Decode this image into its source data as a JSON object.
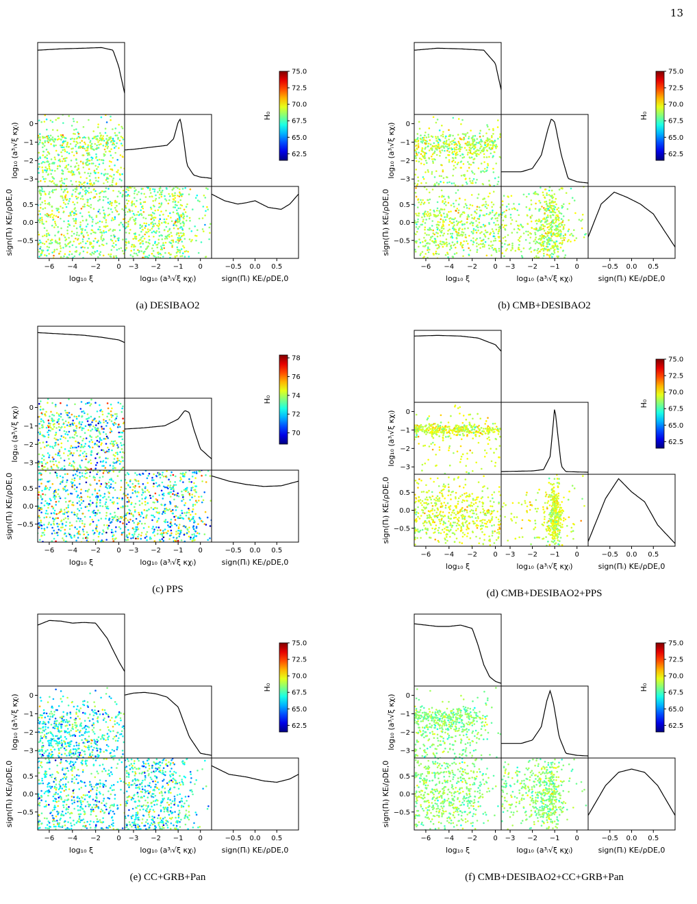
{
  "page_number": "13",
  "shared": {
    "colorbar_label": "H₀",
    "x_labels": [
      "log₁₀ ξ",
      "log₁₀ (a³ᵢ√ξ κχᵢ)",
      "sign(Πᵢ) KEᵢ/ρDE,0"
    ],
    "y_labels": [
      "log₁₀ (a³ᵢ√ξ κχᵢ)",
      "sign(Πᵢ) KEᵢ/ρDE,0"
    ]
  },
  "panels": [
    {
      "id": "a",
      "caption": "(a) DESIBAO2",
      "cbar_ticks": [
        "62.5",
        "65.0",
        "67.5",
        "70.0",
        "72.5",
        "75.0"
      ],
      "cbar_range": [
        61.5,
        75.0
      ]
    },
    {
      "id": "b",
      "caption": "(b) CMB+DESIBAO2",
      "cbar_ticks": [
        "62.5",
        "65.0",
        "67.5",
        "70.0",
        "72.5",
        "75.0"
      ],
      "cbar_range": [
        61.5,
        75.0
      ]
    },
    {
      "id": "c",
      "caption": "(c) PPS",
      "cbar_ticks": [
        "70",
        "72",
        "74",
        "76",
        "78"
      ],
      "cbar_range": [
        68.8,
        78.3
      ]
    },
    {
      "id": "d",
      "caption": "(d) CMB+DESIBAO2+PPS",
      "cbar_ticks": [
        "62.5",
        "65.0",
        "67.5",
        "70.0",
        "72.5",
        "75.0"
      ],
      "cbar_range": [
        61.5,
        75.0
      ]
    },
    {
      "id": "e",
      "caption": "(e) CC+GRB+Pan",
      "cbar_ticks": [
        "62.5",
        "65.0",
        "67.5",
        "70.0",
        "72.5",
        "75.0"
      ],
      "cbar_range": [
        61.5,
        75.0
      ]
    },
    {
      "id": "f",
      "caption": "(f) CMB+DESIBAO2+CC+GRB+Pan",
      "cbar_ticks": [
        "62.5",
        "65.0",
        "67.5",
        "70.0",
        "72.5",
        "75.0"
      ],
      "cbar_range": [
        61.5,
        75.0
      ]
    }
  ],
  "chart_data": [
    {
      "type": "scatter",
      "panel": "a",
      "axes": {
        "log10_xi": [
          -7,
          0.5
        ],
        "log10_amp": [
          -3.4,
          0.5
        ],
        "sign_KE": [
          -1,
          1
        ]
      },
      "marginals": {
        "log10_xi": [
          [
            -7,
            0.95
          ],
          [
            -5,
            0.97
          ],
          [
            -3,
            0.98
          ],
          [
            -1.5,
            0.99
          ],
          [
            -0.5,
            0.95
          ],
          [
            0,
            0.7
          ],
          [
            0.5,
            0.3
          ]
        ],
        "log10_amp": [
          [
            -3.4,
            0.53
          ],
          [
            -3,
            0.54
          ],
          [
            -2.5,
            0.56
          ],
          [
            -2,
            0.58
          ],
          [
            -1.5,
            0.6
          ],
          [
            -1.2,
            0.7
          ],
          [
            -1,
            0.95
          ],
          [
            -0.9,
            1.0
          ],
          [
            -0.8,
            0.8
          ],
          [
            -0.6,
            0.3
          ],
          [
            -0.3,
            0.15
          ],
          [
            0,
            0.12
          ],
          [
            0.3,
            0.11
          ],
          [
            0.5,
            0.1
          ]
        ],
        "sign_KE": [
          [
            -1,
            0.95
          ],
          [
            -0.7,
            0.85
          ],
          [
            -0.4,
            0.8
          ],
          [
            -0.2,
            0.82
          ],
          [
            0,
            0.85
          ],
          [
            0.3,
            0.75
          ],
          [
            0.6,
            0.72
          ],
          [
            0.8,
            0.8
          ],
          [
            1,
            0.95
          ]
        ]
      },
      "h0_mean": 68.6,
      "h0_spread": 1.1
    },
    {
      "type": "scatter",
      "panel": "b",
      "axes": {
        "log10_xi": [
          -7,
          0.5
        ],
        "log10_amp": [
          -3.4,
          0.5
        ],
        "sign_KE": [
          -1,
          1
        ]
      },
      "marginals": {
        "log10_xi": [
          [
            -7,
            0.95
          ],
          [
            -5,
            0.98
          ],
          [
            -3,
            0.97
          ],
          [
            -1,
            0.95
          ],
          [
            0,
            0.75
          ],
          [
            0.5,
            0.35
          ]
        ],
        "log10_amp": [
          [
            -3.4,
            0.2
          ],
          [
            -2.5,
            0.2
          ],
          [
            -2,
            0.25
          ],
          [
            -1.6,
            0.45
          ],
          [
            -1.3,
            0.85
          ],
          [
            -1.15,
            1.0
          ],
          [
            -1,
            0.95
          ],
          [
            -0.7,
            0.45
          ],
          [
            -0.4,
            0.1
          ],
          [
            0,
            0.05
          ],
          [
            0.5,
            0.03
          ]
        ],
        "sign_KE": [
          [
            -1,
            0.3
          ],
          [
            -0.7,
            0.8
          ],
          [
            -0.4,
            0.98
          ],
          [
            -0.1,
            0.9
          ],
          [
            0.2,
            0.8
          ],
          [
            0.5,
            0.65
          ],
          [
            1,
            0.15
          ]
        ]
      },
      "h0_mean": 68.9,
      "h0_spread": 0.9
    },
    {
      "type": "scatter",
      "panel": "c",
      "axes": {
        "log10_xi": [
          -7,
          0.5
        ],
        "log10_amp": [
          -3.4,
          0.5
        ],
        "sign_KE": [
          -1,
          1
        ]
      },
      "marginals": {
        "log10_xi": [
          [
            -7,
            0.97
          ],
          [
            -5,
            0.95
          ],
          [
            -3,
            0.93
          ],
          [
            -1.5,
            0.9
          ],
          [
            0,
            0.86
          ],
          [
            0.5,
            0.82
          ]
        ],
        "log10_amp": [
          [
            -3.4,
            0.6
          ],
          [
            -2.5,
            0.62
          ],
          [
            -1.6,
            0.65
          ],
          [
            -1,
            0.75
          ],
          [
            -0.7,
            0.88
          ],
          [
            -0.5,
            0.85
          ],
          [
            -0.3,
            0.6
          ],
          [
            0,
            0.3
          ],
          [
            0.5,
            0.15
          ]
        ],
        "sign_KE": [
          [
            -1,
            0.98
          ],
          [
            -0.6,
            0.9
          ],
          [
            -0.2,
            0.85
          ],
          [
            0.2,
            0.82
          ],
          [
            0.6,
            0.83
          ],
          [
            1,
            0.9
          ]
        ]
      },
      "h0_mean": 73.0,
      "h0_spread": 1.6
    },
    {
      "type": "scatter",
      "panel": "d",
      "axes": {
        "log10_xi": [
          -7,
          0.5
        ],
        "log10_amp": [
          -3.4,
          0.5
        ],
        "sign_KE": [
          -1,
          1
        ]
      },
      "marginals": {
        "log10_xi": [
          [
            -7,
            0.98
          ],
          [
            -5,
            0.99
          ],
          [
            -3,
            0.98
          ],
          [
            -1.5,
            0.95
          ],
          [
            0,
            0.85
          ],
          [
            0.5,
            0.75
          ]
        ],
        "log10_amp": [
          [
            -3.4,
            0.02
          ],
          [
            -2,
            0.03
          ],
          [
            -1.5,
            0.05
          ],
          [
            -1.2,
            0.25
          ],
          [
            -1.05,
            0.8
          ],
          [
            -1,
            1.0
          ],
          [
            -0.9,
            0.7
          ],
          [
            -0.7,
            0.1
          ],
          [
            -0.5,
            0.02
          ],
          [
            0.5,
            0.01
          ]
        ],
        "sign_KE": [
          [
            -1,
            0.05
          ],
          [
            -0.6,
            0.7
          ],
          [
            -0.3,
            1.0
          ],
          [
            0,
            0.8
          ],
          [
            0.3,
            0.65
          ],
          [
            0.6,
            0.3
          ],
          [
            1,
            0.02
          ]
        ]
      },
      "h0_mean": 69.4,
      "h0_spread": 0.7
    },
    {
      "type": "scatter",
      "panel": "e",
      "axes": {
        "log10_xi": [
          -7,
          0.5
        ],
        "log10_amp": [
          -3.4,
          0.5
        ],
        "sign_KE": [
          -1,
          1
        ]
      },
      "marginals": {
        "log10_xi": [
          [
            -7,
            0.9
          ],
          [
            -6,
            0.97
          ],
          [
            -5,
            0.96
          ],
          [
            -4,
            0.93
          ],
          [
            -3,
            0.94
          ],
          [
            -2,
            0.93
          ],
          [
            -1,
            0.7
          ],
          [
            0,
            0.35
          ],
          [
            0.5,
            0.2
          ]
        ],
        "log10_amp": [
          [
            -3.4,
            0.93
          ],
          [
            -3,
            0.96
          ],
          [
            -2.5,
            0.97
          ],
          [
            -2,
            0.95
          ],
          [
            -1.5,
            0.9
          ],
          [
            -1,
            0.75
          ],
          [
            -0.5,
            0.3
          ],
          [
            0,
            0.05
          ],
          [
            0.5,
            0.02
          ]
        ],
        "sign_KE": [
          [
            -1,
            0.95
          ],
          [
            -0.6,
            0.82
          ],
          [
            -0.2,
            0.78
          ],
          [
            0.2,
            0.72
          ],
          [
            0.5,
            0.7
          ],
          [
            0.8,
            0.75
          ],
          [
            1,
            0.82
          ]
        ]
      },
      "h0_mean": 66.9,
      "h0_spread": 1.6
    },
    {
      "type": "scatter",
      "panel": "f",
      "axes": {
        "log10_xi": [
          -7,
          0.5
        ],
        "log10_amp": [
          -3.4,
          0.5
        ],
        "sign_KE": [
          -1,
          1
        ]
      },
      "marginals": {
        "log10_xi": [
          [
            -7,
            0.92
          ],
          [
            -6,
            0.9
          ],
          [
            -5,
            0.88
          ],
          [
            -4,
            0.88
          ],
          [
            -3,
            0.9
          ],
          [
            -2,
            0.85
          ],
          [
            -1.5,
            0.6
          ],
          [
            -1,
            0.3
          ],
          [
            -0.5,
            0.12
          ],
          [
            0,
            0.05
          ],
          [
            0.5,
            0.02
          ]
        ],
        "log10_amp": [
          [
            -3.4,
            0.2
          ],
          [
            -2.5,
            0.2
          ],
          [
            -2,
            0.25
          ],
          [
            -1.6,
            0.45
          ],
          [
            -1.35,
            0.85
          ],
          [
            -1.2,
            1.0
          ],
          [
            -1.05,
            0.8
          ],
          [
            -0.8,
            0.3
          ],
          [
            -0.5,
            0.05
          ],
          [
            0,
            0.02
          ],
          [
            0.5,
            0.01
          ]
        ],
        "sign_KE": [
          [
            -1,
            0.2
          ],
          [
            -0.6,
            0.65
          ],
          [
            -0.3,
            0.85
          ],
          [
            0,
            0.9
          ],
          [
            0.3,
            0.85
          ],
          [
            0.6,
            0.65
          ],
          [
            1,
            0.2
          ]
        ]
      },
      "h0_mean": 68.4,
      "h0_spread": 0.7
    }
  ]
}
